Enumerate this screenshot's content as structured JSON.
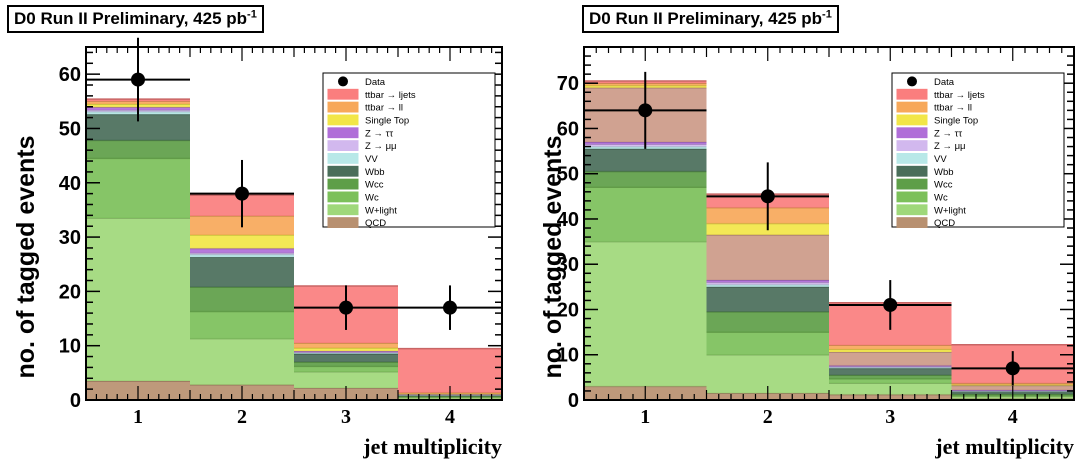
{
  "charts": [
    {
      "banner": {
        "prefix": "D0 Run II Preliminary, 425 pb",
        "sup": "-1"
      },
      "chart_data": {
        "type": "bar",
        "stacked": true,
        "categories": [
          "1",
          "2",
          "3",
          "4"
        ],
        "xlabel": "jet multiplicity",
        "ylabel": "no. of tagged events",
        "xlim": [
          0.5,
          4.5
        ],
        "ylim": [
          0,
          65
        ],
        "yticks": [
          0,
          10,
          20,
          30,
          40,
          50,
          60
        ],
        "grid": false,
        "legend_position": "top-right",
        "series": [
          {
            "name": "QCD",
            "color": "#b89070",
            "values": [
              3.5,
              2.8,
              2.2,
              0.2
            ]
          },
          {
            "name": "W+light",
            "color": "#9fd87a",
            "values": [
              30,
              8.5,
              3,
              0.3
            ]
          },
          {
            "name": "Wc",
            "color": "#7cc05a",
            "values": [
              11,
              5,
              1.0,
              0.1
            ]
          },
          {
            "name": "Wcc",
            "color": "#5e9e48",
            "values": [
              3.3,
              4.5,
              0.8,
              0.1
            ]
          },
          {
            "name": "Wbb",
            "color": "#4a6e5a",
            "values": [
              4.8,
              5.5,
              1.5,
              0.2
            ]
          },
          {
            "name": "VV",
            "color": "#b8e8e8",
            "values": [
              0.5,
              0.5,
              0.2,
              0.05
            ]
          },
          {
            "name": "Z → μμ",
            "color": "#d2b8ee",
            "values": [
              0.3,
              0.3,
              0.1,
              0.05
            ]
          },
          {
            "name": "Z → ττ",
            "color": "#b06ed8",
            "values": [
              0.5,
              0.8,
              0.2,
              0.05
            ]
          },
          {
            "name": "Single Top",
            "color": "#f2e648",
            "values": [
              0.6,
              2.5,
              0.6,
              0.1
            ]
          },
          {
            "name": "ttbar → ll",
            "color": "#f7a85a",
            "values": [
              0.5,
              3.5,
              0.9,
              0.2
            ]
          },
          {
            "name": "ttbar → ljets",
            "color": "#fa7e7e",
            "values": [
              0.4,
              3.8,
              10.5,
              8.1
            ]
          }
        ],
        "data": {
          "name": "Data",
          "values": [
            59,
            38,
            17,
            17
          ],
          "errors": [
            7.7,
            6.2,
            4.1,
            4.1
          ]
        }
      }
    },
    {
      "banner": {
        "prefix": "D0 Run II Preliminary, 425 pb",
        "sup": "-1"
      },
      "chart_data": {
        "type": "bar",
        "stacked": true,
        "categories": [
          "1",
          "2",
          "3",
          "4"
        ],
        "xlabel": "jet multiplicity",
        "ylabel": "no. of tagged events",
        "xlim": [
          0.5,
          4.5
        ],
        "ylim": [
          0,
          78
        ],
        "yticks": [
          0,
          10,
          20,
          30,
          40,
          50,
          60,
          70
        ],
        "grid": false,
        "legend_position": "top-right",
        "series": [
          {
            "name": "QCD",
            "color": "#b89070",
            "values": [
              3,
              1.5,
              1.2,
              0.3
            ]
          },
          {
            "name": "W+light",
            "color": "#9fd87a",
            "values": [
              32,
              8.5,
              2.5,
              0.5
            ]
          },
          {
            "name": "Wc",
            "color": "#7cc05a",
            "values": [
              12,
              5,
              1.0,
              0.2
            ]
          },
          {
            "name": "Wcc",
            "color": "#5e9e48",
            "values": [
              3.5,
              4.5,
              0.8,
              0.3
            ]
          },
          {
            "name": "Wbb",
            "color": "#4a6e5a",
            "values": [
              5,
              5.5,
              1.5,
              0.6
            ]
          },
          {
            "name": "VV",
            "color": "#b8e8e8",
            "values": [
              0.5,
              0.5,
              0.2,
              0.1
            ]
          },
          {
            "name": "Z → μμ",
            "color": "#d2b8ee",
            "values": [
              0.5,
              0.5,
              0.2,
              0.1
            ]
          },
          {
            "name": "Z → ττ",
            "color": "#b06ed8",
            "values": [
              0.5,
              0.5,
              0.2,
              0.1
            ]
          },
          {
            "name": "QCD",
            "color": "#cc9a88",
            "values": [
              12,
              10,
              3,
              1.0
            ]
          },
          {
            "name": "Single Top",
            "color": "#f2e648",
            "values": [
              0.5,
              2.5,
              0.6,
              0.2
            ]
          },
          {
            "name": "ttbar → ll",
            "color": "#f7a85a",
            "values": [
              0.5,
              3.5,
              0.9,
              0.3
            ]
          },
          {
            "name": "ttbar → ljets",
            "color": "#fa7e7e",
            "values": [
              0.5,
              3,
              9.4,
              8.5
            ]
          }
        ],
        "data": {
          "name": "Data",
          "values": [
            64,
            45,
            21,
            7
          ],
          "errors": [
            8.5,
            7.5,
            5.5,
            3.8
          ]
        }
      }
    }
  ],
  "legend_labels": [
    "Data",
    "ttbar → ljets",
    "ttbar → ll",
    "Single Top",
    "Z → ττ",
    "Z → μμ",
    "VV",
    "Wbb",
    "Wcc",
    "Wc",
    "W+light",
    "QCD"
  ],
  "legend_colors": [
    "#000000",
    "#fa7e7e",
    "#f7a85a",
    "#f2e648",
    "#b06ed8",
    "#d2b8ee",
    "#b8e8e8",
    "#4a6e5a",
    "#5e9e48",
    "#7cc05a",
    "#9fd87a",
    "#b89070"
  ]
}
